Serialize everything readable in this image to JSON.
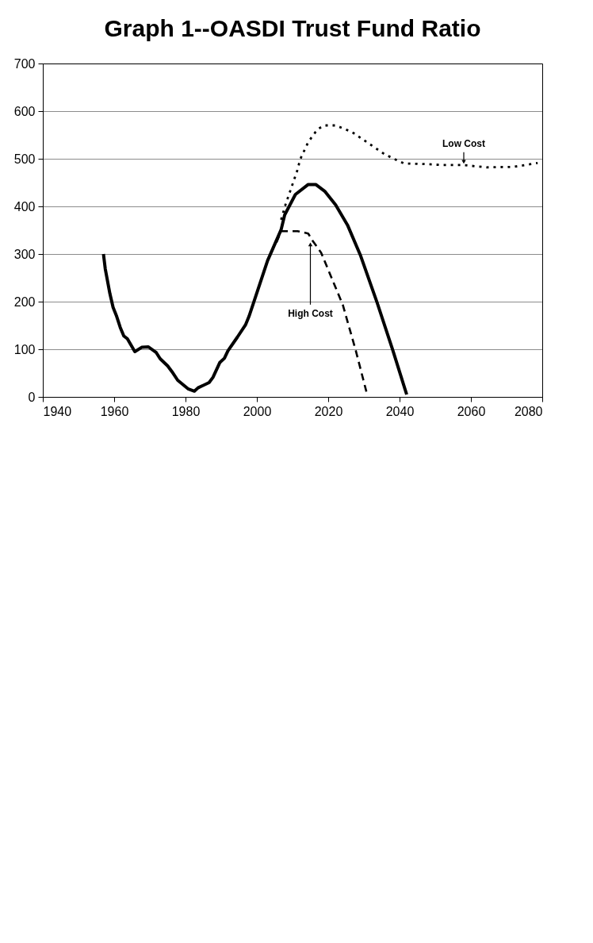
{
  "chart_data": {
    "type": "line",
    "title": "Graph 1--OASDI Trust Fund Ratio",
    "xlim": [
      1940,
      2080
    ],
    "xticks": [
      1940,
      1960,
      1980,
      2000,
      2020,
      2040,
      2060,
      2080
    ],
    "ylim": [
      0,
      700
    ],
    "yticks": [
      0,
      100,
      200,
      300,
      400,
      500,
      600,
      700
    ],
    "grid": "y",
    "marker": "none",
    "series": [
      {
        "color": "#000000",
        "line_style": "solid",
        "x": [
          1957,
          1957.5,
          1958.8,
          1959.7,
          1960.7,
          1961.7,
          1962.7,
          1963.7,
          1965.8,
          1967.7,
          1969.6,
          1971.8,
          1972.9,
          1975,
          1976.2,
          1977.8,
          1980.7,
          1982.5,
          1983.5,
          1986.6,
          1987.7,
          1989.6,
          1990.9,
          1991.9,
          1994.5,
          1996.8,
          1997.8,
          1999.1,
          2003,
          2006.8,
          2007.8,
          2010.8,
          2014.4,
          2016.5,
          2019,
          2022.1,
          2025.4,
          2029,
          2033.7,
          2038.1,
          2042
        ],
        "values": [
          300,
          269,
          217,
          188,
          169,
          146,
          128,
          122,
          95,
          104,
          105,
          93,
          80,
          65,
          53,
          35,
          17,
          12,
          19,
          30,
          41,
          72,
          81,
          97,
          125,
          151,
          169,
          198,
          286,
          351,
          382,
          425,
          446,
          446,
          432,
          403,
          361,
          298,
          198,
          98,
          5
        ]
      },
      {
        "color": "#000000",
        "line_style": "dashed",
        "x": [
          2005.5,
          2006.8,
          2011.4,
          2014.4,
          2015.7,
          2018,
          2024.1,
          2027.7,
          2030.7
        ],
        "values": [
          324,
          348,
          348,
          343,
          327,
          303,
          193,
          98,
          11
        ]
      },
      {
        "color": "#000000",
        "line_style": "dotted",
        "x": [
          2006.8,
          2008,
          2011.4,
          2012.1,
          2014.4,
          2017,
          2019,
          2022.1,
          2026.7,
          2030.8,
          2035.9,
          2039,
          2041.3,
          2047,
          2051.5,
          2057.7,
          2064.4,
          2072,
          2078.7
        ],
        "values": [
          372,
          403,
          477,
          498,
          535,
          562,
          570,
          570,
          556,
          535,
          509,
          498,
          490,
          489,
          487,
          487,
          482,
          483,
          491
        ]
      }
    ],
    "annotations": [
      {
        "text": "Low Cost",
        "x": 2058,
        "y": 487
      },
      {
        "text": "High Cost",
        "x": 2015,
        "y": 327
      }
    ]
  }
}
